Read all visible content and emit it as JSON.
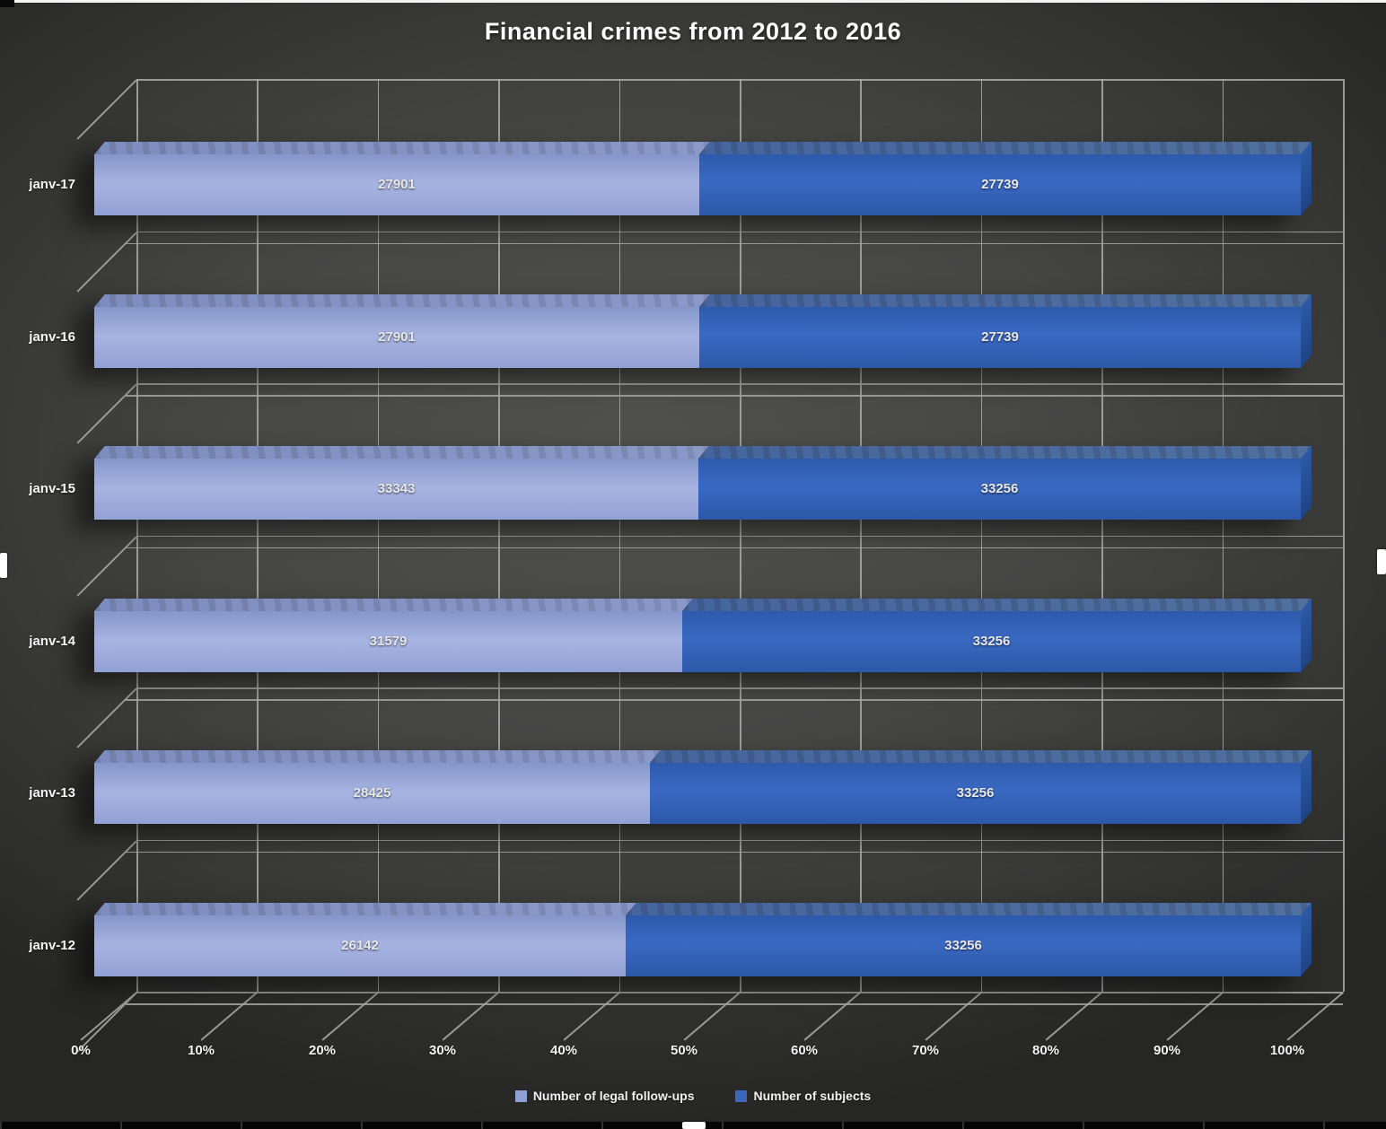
{
  "title": "Financial crimes from 2012 to 2016",
  "chart_data": {
    "type": "bar",
    "subtype": "horizontal-100pct-stacked-3d",
    "title": "Financial crimes from 2012 to 2016",
    "categories_top_to_bottom": [
      "janv-17",
      "janv-16",
      "janv-15",
      "janv-14",
      "janv-13",
      "janv-12"
    ],
    "series": [
      {
        "name": "Number of legal follow-ups",
        "color": "#8fa0d4",
        "values": [
          27901,
          27901,
          33343,
          31579,
          28425,
          26142
        ]
      },
      {
        "name": "Number of subjects",
        "color": "#3a67bb",
        "values": [
          27739,
          27739,
          33256,
          33256,
          33256,
          33256
        ]
      }
    ],
    "value_labels_shown": true,
    "x_ticks": [
      "0%",
      "10%",
      "20%",
      "30%",
      "40%",
      "50%",
      "60%",
      "70%",
      "80%",
      "90%",
      "100%"
    ],
    "xlim": [
      0,
      100
    ],
    "grid": true,
    "legend_position": "bottom",
    "wall_color": "#3f3f3e",
    "gridline_color": "#acacaa",
    "label_color": "#e8e8e8"
  }
}
